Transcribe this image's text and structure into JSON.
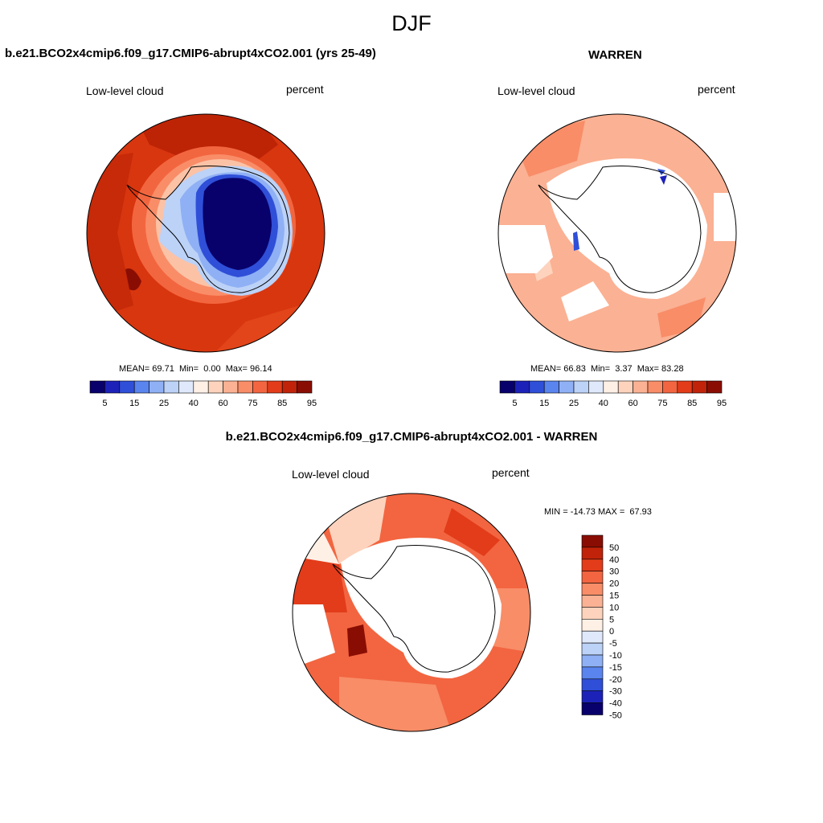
{
  "title": "DJF",
  "panels": [
    {
      "title": "b.e21.BCO2x4cmip6.f09_g17.CMIP6-abrupt4xCO2.001 (yrs 25-49)",
      "left_label": "Low-level cloud",
      "right_label": "percent",
      "stats": {
        "mean_label": "MEAN=",
        "mean": "69.71",
        "min_label": "Min=",
        "min": "0.00",
        "max_label": "Max=",
        "max": "96.14"
      }
    },
    {
      "title": "WARREN",
      "left_label": "Low-level cloud",
      "right_label": "percent",
      "stats": {
        "mean_label": "MEAN=",
        "mean": "66.83",
        "min_label": "Min=",
        "min": "3.37",
        "max_label": "Max=",
        "max": "83.28"
      }
    },
    {
      "title": "b.e21.BCO2x4cmip6.f09_g17.CMIP6-abrupt4xCO2.001 - WARREN",
      "left_label": "Low-level cloud",
      "right_label": "percent",
      "minmax": "MIN = -14.73 MAX =  67.93"
    }
  ],
  "cloud_colorbar": {
    "tick_labels": [
      "5",
      "15",
      "25",
      "40",
      "60",
      "75",
      "85",
      "95"
    ],
    "colors": [
      "#08006b",
      "#1c22b8",
      "#2f4fd8",
      "#5a84ee",
      "#8fb0f4",
      "#bcd2f7",
      "#dfe9fb",
      "#fff0e6",
      "#fdd3bd",
      "#fbb193",
      "#f88d68",
      "#f26540",
      "#e23c1a",
      "#c02309",
      "#8a0d03"
    ]
  },
  "diff_colorbar": {
    "tick_labels": [
      "50",
      "40",
      "30",
      "20",
      "15",
      "10",
      "5",
      "0",
      "-5",
      "-10",
      "-15",
      "-20",
      "-30",
      "-40",
      "-50"
    ],
    "colors": [
      "#8a0d03",
      "#c02309",
      "#e23c1a",
      "#f26540",
      "#f88d68",
      "#fbb193",
      "#fdd3bd",
      "#fff0e6",
      "#dfe9fb",
      "#bcd2f7",
      "#8fb0f4",
      "#5a84ee",
      "#2f4fd8",
      "#1c22b8",
      "#08006b"
    ]
  }
}
